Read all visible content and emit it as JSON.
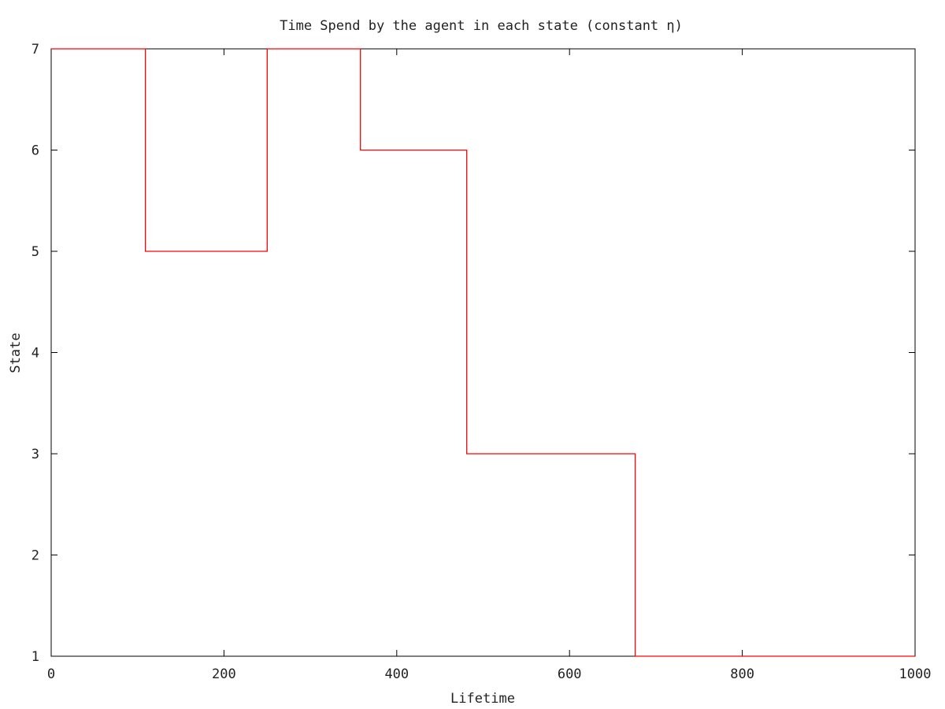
{
  "chart_data": {
    "type": "line",
    "line_shape": "step",
    "title": "Time Spend by the agent in each state (constant η)",
    "xlabel": "Lifetime",
    "ylabel": "State",
    "xlim": [
      0,
      1000
    ],
    "ylim": [
      1,
      7
    ],
    "x_ticks": [
      0,
      200,
      400,
      600,
      800,
      1000
    ],
    "y_ticks": [
      1,
      2,
      3,
      4,
      5,
      6,
      7
    ],
    "grid": false,
    "legend": "none",
    "series": [
      {
        "color": "#ff0000",
        "points": [
          [
            0,
            7
          ],
          [
            109,
            7
          ],
          [
            109,
            5
          ],
          [
            250,
            5
          ],
          [
            250,
            7
          ],
          [
            358,
            7
          ],
          [
            358,
            6
          ],
          [
            481,
            6
          ],
          [
            481,
            3
          ],
          [
            676,
            3
          ],
          [
            676,
            1
          ],
          [
            1000,
            1
          ]
        ]
      }
    ]
  }
}
